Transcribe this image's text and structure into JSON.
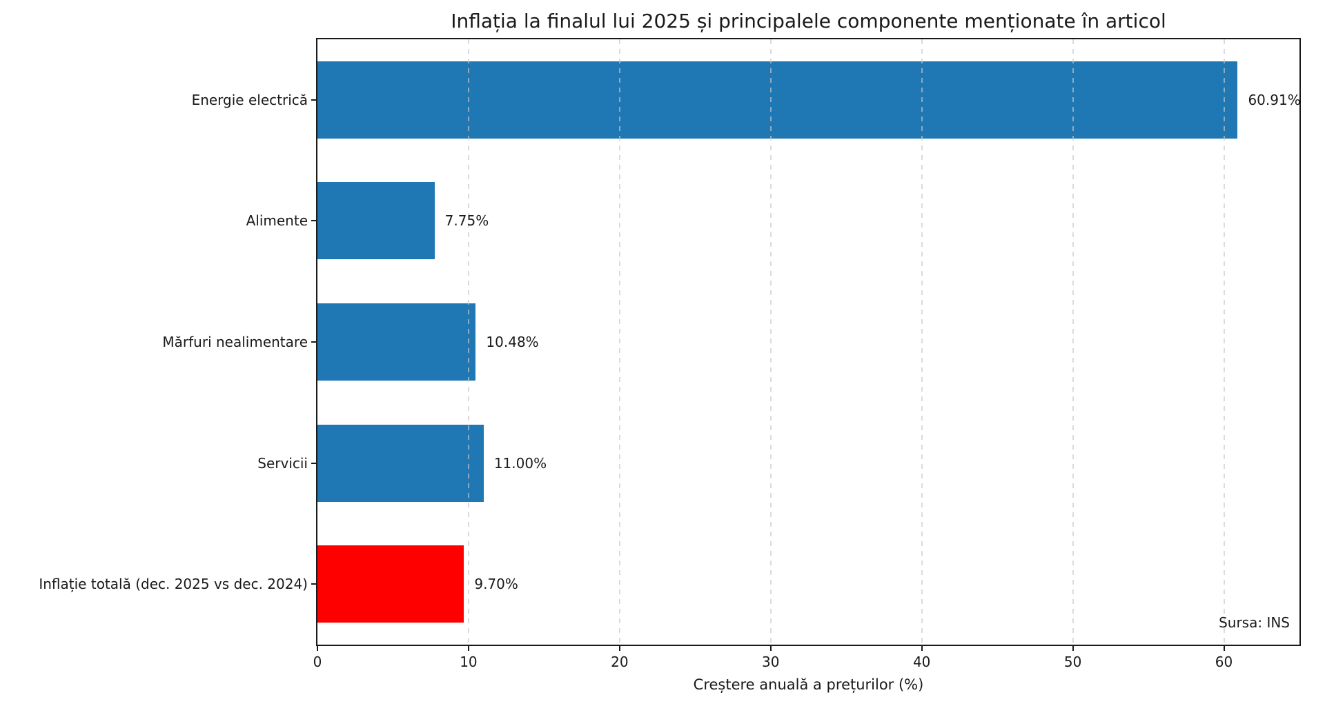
{
  "chart_data": {
    "type": "bar",
    "orientation": "horizontal",
    "title": "Inflația la finalul lui 2025 și principalele componente menționate în articol",
    "xlabel": "Creștere anuală a prețurilor (%)",
    "categories": [
      "Energie electrică",
      "Alimente",
      "Mărfuri nealimentare",
      "Servicii",
      "Inflație totală (dec. 2025 vs dec. 2024)"
    ],
    "values": [
      60.91,
      7.75,
      10.48,
      11.0,
      9.7
    ],
    "value_labels": [
      "60.91%",
      "7.75%",
      "10.48%",
      "11.00%",
      "9.70%"
    ],
    "bar_colors": [
      "#1f77b4",
      "#1f77b4",
      "#1f77b4",
      "#1f77b4",
      "#ff0000"
    ],
    "xlim": [
      0,
      65
    ],
    "xticks": [
      0,
      10,
      20,
      30,
      40,
      50,
      60
    ],
    "xtick_labels": [
      "0",
      "10",
      "20",
      "30",
      "40",
      "50",
      "60"
    ],
    "grid": {
      "axis": "x",
      "style": "dashed",
      "on": true
    },
    "legend": "none",
    "source_note": "Sursa: INS",
    "colors": {
      "default_bar": "#1f77b4",
      "highlight_bar": "#ff0000",
      "spine": "#1a1a1a",
      "text": "#1a1a1a",
      "background": "#ffffff"
    }
  }
}
